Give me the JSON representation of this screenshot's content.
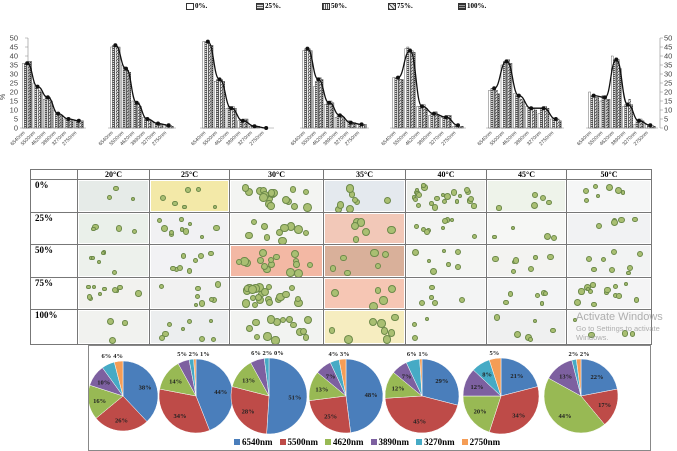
{
  "chart_data": [
    {
      "type": "bar",
      "title": "",
      "ylabel": "%",
      "ylim": [
        0,
        50
      ],
      "yticks": [
        "0",
        "5",
        "10",
        "15",
        "20",
        "25",
        "30",
        "35",
        "40",
        "45",
        "50"
      ],
      "categories": [
        "6540nm",
        "5500nm",
        "4620nm",
        "3890nm",
        "3270nm",
        "2750nm"
      ],
      "legend": [
        "0%.",
        "25%.",
        "50%.",
        "75%.",
        "100%."
      ],
      "legend_placement": "top",
      "panels": [
        {
          "line": [
            36,
            23,
            17,
            8,
            5,
            4
          ],
          "bars": [
            [
              36,
              36,
              36,
              37,
              37
            ],
            [
              25,
              23,
              22,
              21,
              20
            ],
            [
              16,
              17,
              18,
              17,
              15
            ],
            [
              10,
              8,
              8,
              7,
              7
            ],
            [
              5,
              5,
              5,
              5,
              4
            ],
            [
              4,
              4,
              4,
              4,
              4
            ]
          ]
        },
        {
          "line": [
            46,
            33,
            14,
            5,
            2.5,
            1.5
          ],
          "bars": [
            [
              45,
              46,
              46,
              45,
              45
            ],
            [
              35,
              34,
              33,
              32,
              31
            ],
            [
              15,
              14,
              14,
              14,
              12
            ],
            [
              6,
              5,
              5,
              5,
              4
            ],
            [
              3,
              3,
              2.5,
              2.5,
              2
            ],
            [
              2,
              1.5,
              1.5,
              1.5,
              1
            ]
          ]
        },
        {
          "line": [
            48,
            27,
            11,
            4,
            1,
            0
          ],
          "bars": [
            [
              48,
              48,
              47,
              46,
              46
            ],
            [
              26,
              27,
              27,
              27,
              26
            ],
            [
              11,
              12,
              11,
              12,
              11
            ],
            [
              4,
              4,
              4,
              5,
              5
            ],
            [
              1,
              1,
              1,
              1,
              1
            ],
            [
              0,
              0,
              0,
              0,
              0
            ]
          ]
        },
        {
          "line": [
            44,
            27,
            14,
            7,
            3,
            2
          ],
          "bars": [
            [
              43,
              44,
              45,
              44,
              43
            ],
            [
              23,
              26,
              27,
              28,
              27
            ],
            [
              13,
              14,
              14,
              15,
              14
            ],
            [
              6,
              7,
              7,
              7,
              6
            ],
            [
              4,
              4,
              3,
              3,
              3
            ],
            [
              2,
              2,
              2,
              2,
              2
            ]
          ]
        },
        {
          "line": [
            28,
            43,
            12,
            8,
            6,
            1.5
          ],
          "bars": [
            [
              28,
              28,
              28,
              27,
              27
            ],
            [
              44,
              45,
              44,
              43,
              42
            ],
            [
              12,
              12,
              13,
              13,
              11
            ],
            [
              7,
              8,
              8,
              9,
              7
            ],
            [
              6,
              6,
              6,
              7,
              7
            ],
            [
              1,
              1.5,
              1.5,
              1,
              1
            ]
          ]
        },
        {
          "line": [
            22,
            37,
            18,
            11,
            11,
            5
          ],
          "bars": [
            [
              21,
              22,
              23,
              21,
              19
            ],
            [
              35,
              37,
              37,
              38,
              36
            ],
            [
              19,
              18,
              17,
              16,
              15
            ],
            [
              12,
              11,
              11,
              11,
              10
            ],
            [
              8,
              11,
              11,
              12,
              11
            ],
            [
              5,
              5,
              5,
              5,
              4
            ]
          ]
        },
        {
          "line": [
            18,
            17,
            38,
            13,
            4,
            1.5
          ],
          "bars": [
            [
              20,
              18,
              18,
              17,
              17
            ],
            [
              15,
              18,
              17,
              16,
              16
            ],
            [
              40,
              38,
              39,
              38,
              33
            ],
            [
              12,
              13,
              14,
              16,
              13
            ],
            [
              2,
              4,
              5,
              5,
              4
            ],
            [
              2,
              2,
              1.5,
              1.5,
              1
            ]
          ]
        }
      ]
    },
    {
      "type": "pie",
      "legend": [
        "6540nm",
        "5500nm",
        "4620nm",
        "3890nm",
        "3270nm",
        "2750nm"
      ],
      "colors": [
        "#4a7ebb",
        "#be4b48",
        "#98b954",
        "#7d60a0",
        "#46aac5",
        "#f59d56"
      ],
      "legend_placement": "bottom",
      "pies": [
        {
          "values": [
            38,
            26,
            16,
            10,
            6,
            4
          ],
          "labels": [
            "38%",
            "26%",
            "16%",
            "10%",
            "6%",
            "4%"
          ]
        },
        {
          "values": [
            44,
            34,
            14,
            5,
            2,
            1
          ],
          "labels": [
            "44%",
            "34%",
            "14%",
            "5%",
            "2%",
            "1%"
          ]
        },
        {
          "values": [
            51,
            28,
            13,
            6,
            2,
            0
          ],
          "labels": [
            "51%",
            "28%",
            "13%",
            "6%",
            "2%",
            "0%"
          ]
        },
        {
          "values": [
            48,
            25,
            13,
            7,
            4,
            3
          ],
          "labels": [
            "48%",
            "25%",
            "13%",
            "7%",
            "4%",
            "3%"
          ]
        },
        {
          "values": [
            29,
            45,
            12,
            7,
            6,
            1
          ],
          "labels": [
            "29%",
            "45%",
            "12%",
            "7%",
            "6%",
            "1%"
          ]
        },
        {
          "values": [
            21,
            34,
            20,
            12,
            8,
            5
          ],
          "labels": [
            "21%",
            "34%",
            "20%",
            "12%",
            "8%",
            "5%"
          ]
        },
        {
          "values": [
            22,
            17,
            44,
            13,
            2,
            2
          ],
          "labels": [
            "22%",
            "17%",
            "44%",
            "13%",
            "2%",
            "2%"
          ]
        }
      ]
    }
  ],
  "micro_table": {
    "columns": [
      "20°C",
      "25°C",
      "30°C",
      "35°C",
      "40°C",
      "45°C",
      "50°C"
    ],
    "rows": [
      "0%",
      "25%",
      "50%",
      "75%",
      "100%"
    ]
  },
  "watermark": {
    "line1": "Activate Windows",
    "line2": "Go to Settings to activate Windows."
  }
}
